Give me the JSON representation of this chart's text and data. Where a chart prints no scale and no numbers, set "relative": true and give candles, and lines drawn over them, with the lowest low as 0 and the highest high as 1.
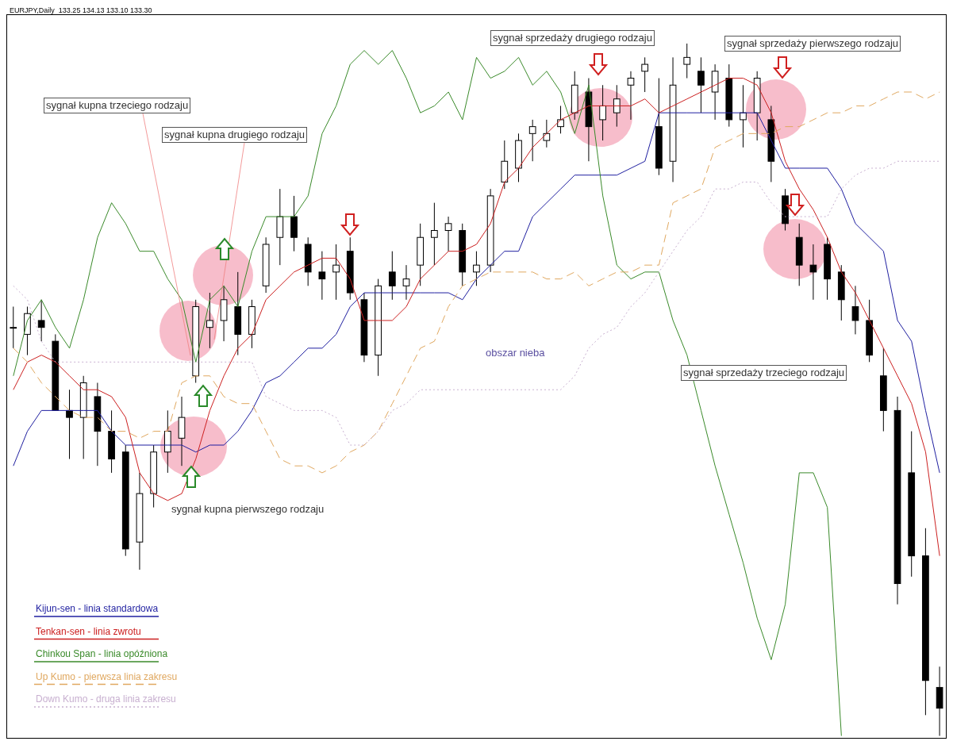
{
  "chart_data": {
    "type": "candlestick",
    "title": "EURJPY,Daily  133.25 134.13 133.10 133.30",
    "relative": true,
    "legend": "bottom left",
    "categories": [
      null,
      null,
      null,
      null,
      null,
      null,
      null,
      null,
      null,
      null,
      null,
      null,
      null,
      null,
      null,
      null,
      null,
      null,
      null,
      null,
      null,
      null,
      null,
      null,
      null,
      null,
      null,
      null,
      null,
      null,
      null,
      null,
      null,
      null,
      null,
      null,
      null,
      null,
      null,
      null,
      null,
      null,
      null,
      null,
      null,
      null,
      null,
      null,
      null,
      null,
      null,
      null,
      null,
      null,
      null,
      null,
      null,
      null,
      null,
      null,
      null,
      null,
      null,
      null,
      null,
      null,
      null
    ],
    "ohlc": [
      [
        0.59,
        0.62,
        0.56,
        0.59
      ],
      [
        0.58,
        0.62,
        0.55,
        0.61
      ],
      [
        0.6,
        0.63,
        0.57,
        0.59
      ],
      [
        0.57,
        0.58,
        0.47,
        0.47
      ],
      [
        0.47,
        0.5,
        0.4,
        0.46
      ],
      [
        0.46,
        0.52,
        0.4,
        0.51
      ],
      [
        0.49,
        0.51,
        0.39,
        0.44
      ],
      [
        0.44,
        0.47,
        0.38,
        0.4
      ],
      [
        0.41,
        0.42,
        0.26,
        0.27
      ],
      [
        0.28,
        0.38,
        0.24,
        0.35
      ],
      [
        0.35,
        0.42,
        0.33,
        0.41
      ],
      [
        0.41,
        0.47,
        0.38,
        0.44
      ],
      [
        0.43,
        0.49,
        0.39,
        0.46
      ],
      [
        0.52,
        0.63,
        0.51,
        0.62
      ],
      [
        0.59,
        0.64,
        0.56,
        0.6
      ],
      [
        0.6,
        0.65,
        0.57,
        0.63
      ],
      [
        0.62,
        0.67,
        0.55,
        0.58
      ],
      [
        0.58,
        0.63,
        0.56,
        0.62
      ],
      [
        0.65,
        0.72,
        0.64,
        0.71
      ],
      [
        0.72,
        0.79,
        0.68,
        0.75
      ],
      [
        0.75,
        0.78,
        0.7,
        0.72
      ],
      [
        0.71,
        0.72,
        0.65,
        0.67
      ],
      [
        0.67,
        0.7,
        0.63,
        0.66
      ],
      [
        0.67,
        0.71,
        0.63,
        0.68
      ],
      [
        0.7,
        0.72,
        0.63,
        0.64
      ],
      [
        0.63,
        0.64,
        0.54,
        0.55
      ],
      [
        0.55,
        0.66,
        0.52,
        0.65
      ],
      [
        0.67,
        0.7,
        0.63,
        0.65
      ],
      [
        0.65,
        0.68,
        0.63,
        0.66
      ],
      [
        0.68,
        0.74,
        0.65,
        0.72
      ],
      [
        0.72,
        0.77,
        0.68,
        0.73
      ],
      [
        0.73,
        0.75,
        0.7,
        0.74
      ],
      [
        0.73,
        0.74,
        0.65,
        0.67
      ],
      [
        0.67,
        0.7,
        0.65,
        0.68
      ],
      [
        0.68,
        0.79,
        0.67,
        0.78
      ],
      [
        0.8,
        0.86,
        0.79,
        0.83
      ],
      [
        0.82,
        0.87,
        0.8,
        0.86
      ],
      [
        0.87,
        0.89,
        0.83,
        0.88
      ],
      [
        0.86,
        0.89,
        0.85,
        0.87
      ],
      [
        0.88,
        0.91,
        0.87,
        0.89
      ],
      [
        0.9,
        0.96,
        0.89,
        0.94
      ],
      [
        0.93,
        0.95,
        0.83,
        0.88
      ],
      [
        0.89,
        0.94,
        0.86,
        0.91
      ],
      [
        0.9,
        0.94,
        0.88,
        0.92
      ],
      [
        0.94,
        0.96,
        0.89,
        0.95
      ],
      [
        0.96,
        0.98,
        0.93,
        0.97
      ],
      [
        0.88,
        0.95,
        0.81,
        0.82
      ],
      [
        0.83,
        0.98,
        0.8,
        0.94
      ],
      [
        0.97,
        1.0,
        0.95,
        0.98
      ],
      [
        0.96,
        0.98,
        0.9,
        0.94
      ],
      [
        0.93,
        0.97,
        0.89,
        0.96
      ],
      [
        0.95,
        0.97,
        0.88,
        0.89
      ],
      [
        0.89,
        0.94,
        0.85,
        0.9
      ],
      [
        0.9,
        0.96,
        0.86,
        0.95
      ],
      [
        0.89,
        0.91,
        0.8,
        0.83
      ],
      [
        0.78,
        0.79,
        0.73,
        0.74
      ],
      [
        0.72,
        0.74,
        0.65,
        0.68
      ],
      [
        0.68,
        0.71,
        0.63,
        0.67
      ],
      [
        0.71,
        0.72,
        0.63,
        0.66
      ],
      [
        0.67,
        0.68,
        0.6,
        0.63
      ],
      [
        0.62,
        0.65,
        0.58,
        0.6
      ],
      [
        0.6,
        0.63,
        0.54,
        0.55
      ],
      [
        0.52,
        0.56,
        0.44,
        0.47
      ],
      [
        0.47,
        0.49,
        0.19,
        0.22
      ],
      [
        0.38,
        0.44,
        0.23,
        0.26
      ],
      [
        0.26,
        0.3,
        0.03,
        0.08
      ],
      [
        0.07,
        0.1,
        0.0,
        0.04
      ]
    ],
    "series": [
      {
        "name": "Kijun-sen - linia standardowa",
        "type": "line",
        "line_style": "solid",
        "color": "#1f1fa0",
        "values": [
          0.39,
          0.44,
          0.47,
          0.47,
          0.47,
          0.47,
          0.47,
          0.44,
          0.42,
          0.42,
          0.42,
          0.42,
          0.42,
          0.41,
          0.42,
          0.42,
          0.44,
          0.47,
          0.51,
          0.52,
          0.54,
          0.56,
          0.56,
          0.58,
          0.62,
          0.64,
          0.64,
          0.64,
          0.64,
          0.64,
          0.64,
          0.64,
          0.63,
          0.66,
          0.68,
          0.7,
          0.7,
          0.75,
          0.77,
          0.79,
          0.81,
          0.81,
          0.81,
          0.81,
          0.82,
          0.83,
          0.9,
          0.9,
          0.9,
          0.9,
          0.9,
          0.9,
          0.9,
          0.9,
          0.86,
          0.82,
          0.82,
          0.82,
          0.82,
          0.79,
          0.74,
          0.72,
          0.7,
          0.6,
          0.57,
          0.47,
          0.38
        ]
      },
      {
        "name": "Tenkan-sen - linia zwrotu",
        "type": "line",
        "line_style": "solid",
        "color": "#cc2020",
        "values": [
          0.5,
          0.54,
          0.55,
          0.54,
          0.52,
          0.5,
          0.5,
          0.49,
          0.46,
          0.38,
          0.35,
          0.34,
          0.35,
          0.4,
          0.47,
          0.52,
          0.56,
          0.58,
          0.63,
          0.65,
          0.67,
          0.68,
          0.69,
          0.69,
          0.66,
          0.6,
          0.6,
          0.6,
          0.62,
          0.66,
          0.68,
          0.7,
          0.7,
          0.71,
          0.74,
          0.8,
          0.82,
          0.85,
          0.87,
          0.89,
          0.9,
          0.91,
          0.91,
          0.91,
          0.91,
          0.92,
          0.9,
          0.91,
          0.92,
          0.93,
          0.94,
          0.95,
          0.95,
          0.94,
          0.9,
          0.83,
          0.79,
          0.76,
          0.72,
          0.67,
          0.64,
          0.6,
          0.56,
          0.52,
          0.48,
          0.41,
          0.26
        ]
      },
      {
        "name": "Chinkou Span - linia opóźniona",
        "type": "line",
        "line_style": "solid",
        "color": "#3a8a2a",
        "values": [
          0.52,
          0.6,
          0.63,
          0.59,
          0.56,
          0.63,
          0.72,
          0.77,
          0.74,
          0.7,
          0.7,
          0.66,
          0.63,
          0.54,
          0.63,
          0.65,
          0.62,
          0.7,
          0.75,
          0.75,
          0.75,
          0.78,
          0.87,
          0.91,
          0.97,
          0.99,
          0.97,
          0.99,
          0.95,
          0.9,
          0.91,
          0.93,
          0.89,
          0.98,
          0.95,
          0.96,
          0.98,
          0.94,
          0.96,
          0.93,
          0.87,
          0.94,
          0.78,
          0.68,
          0.66,
          0.67,
          0.67,
          0.6,
          0.55,
          0.47,
          0.39,
          0.32,
          0.25,
          0.17,
          0.11,
          0.19,
          0.38,
          0.38,
          0.33,
          0.0,
          null,
          null,
          null,
          null,
          null,
          null,
          null
        ]
      },
      {
        "name": "Up Kumo - pierwsza linia zakresu",
        "type": "line",
        "line_style": "dashed",
        "color": "#e0a860",
        "values": [
          0.56,
          0.54,
          0.51,
          0.49,
          0.47,
          0.46,
          0.46,
          0.44,
          0.44,
          0.43,
          0.44,
          0.44,
          0.51,
          0.52,
          0.52,
          0.49,
          0.48,
          0.48,
          0.44,
          0.4,
          0.39,
          0.39,
          0.38,
          0.39,
          0.41,
          0.42,
          0.44,
          0.48,
          0.52,
          0.56,
          0.57,
          0.62,
          0.65,
          0.66,
          0.67,
          0.67,
          0.67,
          0.67,
          0.66,
          0.66,
          0.67,
          0.65,
          0.66,
          0.67,
          0.67,
          0.68,
          0.68,
          0.77,
          0.78,
          0.79,
          0.85,
          0.86,
          0.87,
          0.87,
          0.87,
          0.88,
          0.88,
          0.89,
          0.9,
          0.9,
          0.91,
          0.91,
          0.92,
          0.93,
          0.93,
          0.92,
          0.93
        ]
      },
      {
        "name": "Down Kumo - druga linia zakresu",
        "type": "line",
        "line_style": "dotted",
        "color": "#c8b0d0",
        "values": [
          0.65,
          0.63,
          0.57,
          0.54,
          0.54,
          0.54,
          0.54,
          0.54,
          0.54,
          0.54,
          0.54,
          0.54,
          0.54,
          0.54,
          0.54,
          0.54,
          0.54,
          0.54,
          0.49,
          0.48,
          0.47,
          0.47,
          0.47,
          0.46,
          0.42,
          0.42,
          0.44,
          0.47,
          0.48,
          0.5,
          0.5,
          0.5,
          0.5,
          0.5,
          0.5,
          0.5,
          0.5,
          0.5,
          0.5,
          0.5,
          0.52,
          0.56,
          0.58,
          0.59,
          0.62,
          0.64,
          0.67,
          0.7,
          0.73,
          0.75,
          0.79,
          0.79,
          0.8,
          0.8,
          0.77,
          0.75,
          0.75,
          0.75,
          0.75,
          0.79,
          0.81,
          0.82,
          0.82,
          0.83,
          0.83,
          0.83,
          0.83
        ]
      }
    ],
    "annotations": [
      "sygnał kupna trzeciego rodzaju",
      "sygnał kupna drugiego rodzaju",
      "sygnał kupna pierwszego rodzaju",
      "sygnał sprzedaży drugiego rodzaju",
      "sygnał sprzedaży pierwszego rodzaju",
      "sygnał sprzedaży trzeciego rodzaju",
      "obszar nieba"
    ]
  }
}
